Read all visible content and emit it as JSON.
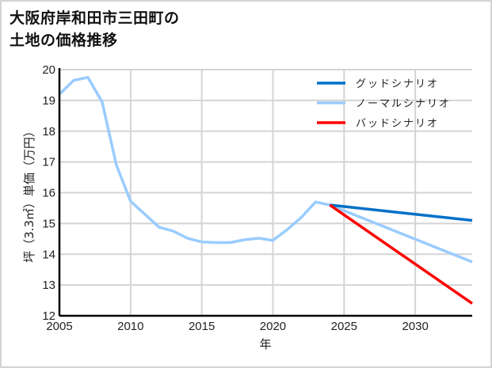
{
  "title_lines": [
    "大阪府岸和田市三田町の",
    "土地の価格推移"
  ],
  "chart_data": {
    "type": "line",
    "title": "大阪府岸和田市三田町の土地の価格推移",
    "xlabel": "年",
    "ylabel": "坪（3.3㎡）単価（万円）",
    "xlim": [
      2005,
      2034
    ],
    "ylim": [
      12,
      20
    ],
    "x_ticks": [
      2005,
      2010,
      2015,
      2020,
      2025,
      2030
    ],
    "y_ticks": [
      12,
      13,
      14,
      15,
      16,
      17,
      18,
      19,
      20
    ],
    "grid": true,
    "legend_position": "upper right",
    "series": [
      {
        "name": "グッドシナリオ",
        "color": "#0070c8",
        "x": [
          2024,
          2034
        ],
        "values": [
          15.6,
          15.1
        ]
      },
      {
        "name": "ノーマルシナリオ",
        "color": "#99ccff",
        "x": [
          2005,
          2006,
          2007,
          2008,
          2009,
          2010,
          2011,
          2012,
          2013,
          2014,
          2015,
          2016,
          2017,
          2018,
          2019,
          2020,
          2021,
          2022,
          2023,
          2024,
          2034
        ],
        "values": [
          19.2,
          19.65,
          19.75,
          18.95,
          16.9,
          15.72,
          15.3,
          14.88,
          14.75,
          14.52,
          14.4,
          14.38,
          14.38,
          14.47,
          14.52,
          14.45,
          14.8,
          15.2,
          15.7,
          15.6,
          13.75
        ]
      },
      {
        "name": "バッドシナリオ",
        "color": "#ff0000",
        "x": [
          2024,
          2034
        ],
        "values": [
          15.6,
          12.4
        ]
      }
    ]
  }
}
